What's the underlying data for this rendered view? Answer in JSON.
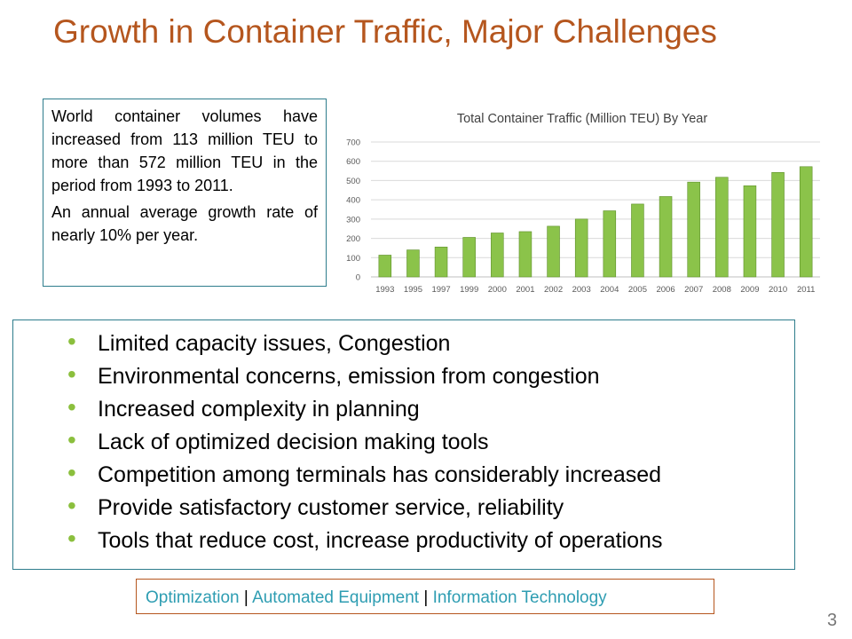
{
  "slide": {
    "title": "Growth in Container Traffic, Major Challenges",
    "page_number": "3"
  },
  "info_box": {
    "paragraph1": "World container volumes have increased from 113 million TEU to more than 572 million TEU in the period from 1993 to 2011.",
    "paragraph2": "An annual average growth rate of nearly 10% per year."
  },
  "bullets": [
    "Limited capacity issues, Congestion",
    "Environmental concerns, emission from congestion",
    "Increased complexity in planning",
    "Lack of optimized decision making tools",
    "Competition among terminals has considerably increased",
    "Provide satisfactory customer service, reliability",
    "Tools that reduce cost, increase productivity of operations"
  ],
  "footer": {
    "item1": "Optimization",
    "separator": "|",
    "item2": "Automated Equipment",
    "item3": "Information Technology"
  },
  "colors": {
    "title": "#b5561e",
    "bar_fill": "#8bc34a",
    "bar_stroke": "#5e8f2a",
    "box_border": "#2e7d8c",
    "footer_text": "#2e9db2",
    "bullet": "#8bbf3d"
  },
  "chart_data": {
    "type": "bar",
    "title": "Total Container Traffic (Million TEU) By Year",
    "categories": [
      "1993",
      "1995",
      "1997",
      "1999",
      "2000",
      "2001",
      "2002",
      "2003",
      "2004",
      "2005",
      "2006",
      "2007",
      "2008",
      "2009",
      "2010",
      "2011"
    ],
    "values": [
      113,
      140,
      155,
      205,
      228,
      235,
      263,
      300,
      343,
      378,
      417,
      492,
      517,
      473,
      542,
      572
    ],
    "ylim": [
      0,
      700
    ],
    "yticks": [
      0,
      100,
      200,
      300,
      400,
      500,
      600,
      700
    ],
    "xlabel": "",
    "ylabel": "",
    "grid": true,
    "legend": "none"
  }
}
